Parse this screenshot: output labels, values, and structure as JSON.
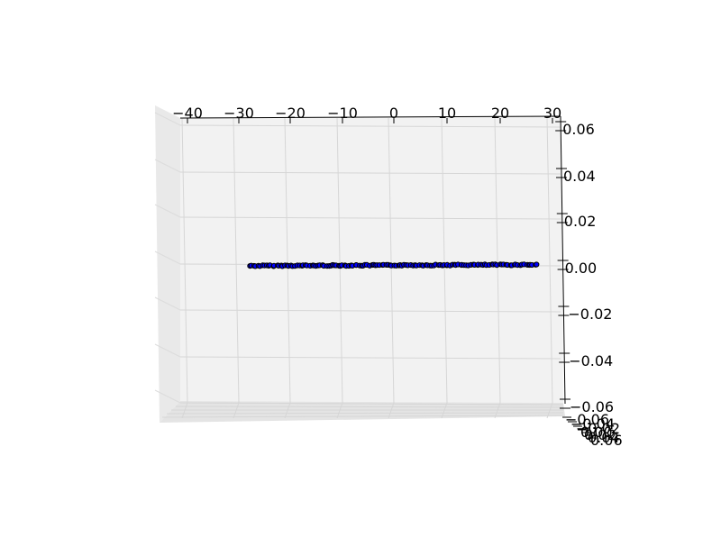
{
  "chart_data": {
    "type": "scatter",
    "projection": "3d",
    "x_ticks": [
      "−40",
      "−30",
      "−20",
      "−10",
      "0",
      "10",
      "20",
      "30"
    ],
    "z_ticks": [
      "0.06",
      "0.04",
      "0.02",
      "0.00",
      "−0.02",
      "−0.04",
      "−0.06"
    ],
    "y_ticks": [
      "−0.06",
      "−0.04",
      "−0.02",
      "0.00",
      "0.02",
      "0.04",
      "0.06"
    ],
    "xlim": [
      -40,
      30
    ],
    "zlim": [
      -0.06,
      0.06
    ],
    "marker_color": "#0000ff",
    "marker_edge": "#000000",
    "series": [
      {
        "x_range": [
          -28,
          27
        ],
        "z_range": [
          0.0,
          0.0
        ],
        "point_count": 140,
        "note_visible_y_offset_pixels_omitted": true
      }
    ],
    "grid": true
  }
}
